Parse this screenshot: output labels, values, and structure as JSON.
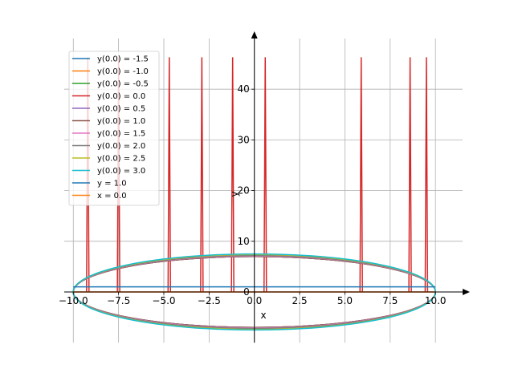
{
  "chart_data": {
    "type": "line",
    "title": "",
    "xlabel": "x",
    "ylabel": "y",
    "xlim": [
      -10.5,
      11.5
    ],
    "ylim": [
      -10,
      50
    ],
    "x_ticks": [
      -10.0,
      -7.5,
      -5.0,
      -2.5,
      0.0,
      2.5,
      5.0,
      7.5,
      10.0
    ],
    "x_tick_labels": [
      "−10.0",
      "−7.5",
      "−5.0",
      "−2.5",
      "0.0",
      "2.5",
      "5.0",
      "7.5",
      "10.0"
    ],
    "y_ticks": [
      0,
      10,
      20,
      30,
      40
    ],
    "y_tick_labels": [
      "0",
      "10",
      "20",
      "30",
      "40"
    ],
    "grid": true,
    "axes_through_origin": true,
    "legend_position": "top-left",
    "series": [
      {
        "name": "y(0.0) = -1.5",
        "color": "#1f77b4",
        "kind": "ellipse",
        "center": 0.0,
        "semi_axis": 7.0
      },
      {
        "name": "y(0.0) = -1.0",
        "color": "#ff7f0e",
        "kind": "ellipse",
        "center": 0.0,
        "semi_axis": 7.0
      },
      {
        "name": "y(0.0) = -0.5",
        "color": "#2ca02c",
        "kind": "ellipse",
        "center": 0.0,
        "semi_axis": 7.0
      },
      {
        "name": "y(0.0) = 0.0",
        "color": "#d62728",
        "kind": "spikes",
        "baseline": 0.0,
        "peak": 46.3,
        "x_positions": [
          -9.2,
          -7.5,
          -4.7,
          -2.9,
          -1.2,
          0.6,
          5.9,
          8.6,
          9.5
        ]
      },
      {
        "name": "y(0.0) = 0.5",
        "color": "#9467bd",
        "kind": "ellipse",
        "center": 0.0,
        "semi_axis": 7.0
      },
      {
        "name": "y(0.0) = 1.0",
        "color": "#8c564b",
        "kind": "ellipse",
        "center": 0.0,
        "semi_axis": 7.0
      },
      {
        "name": "y(0.0) = 1.5",
        "color": "#e377c2",
        "kind": "ellipse",
        "center": 0.0,
        "semi_axis": 7.1
      },
      {
        "name": "y(0.0) = 2.0",
        "color": "#7f7f7f",
        "kind": "ellipse",
        "center": 0.0,
        "semi_axis": 7.2
      },
      {
        "name": "y(0.0) = 2.5",
        "color": "#bcbd22",
        "kind": "ellipse",
        "center": 0.0,
        "semi_axis": 7.4
      },
      {
        "name": "y(0.0) = 3.0",
        "color": "#17becf",
        "kind": "ellipse",
        "center": 0.0,
        "semi_axis": 7.5
      },
      {
        "name": "y = 1.0",
        "color": "#1f77b4",
        "kind": "hline",
        "y": 1.0,
        "x_range": [
          -10.0,
          10.0
        ]
      },
      {
        "name": "x = 0.0",
        "color": "#ff7f0e",
        "kind": "hline",
        "y": 0.0,
        "x_range": [
          -10.0,
          10.0
        ]
      }
    ]
  }
}
